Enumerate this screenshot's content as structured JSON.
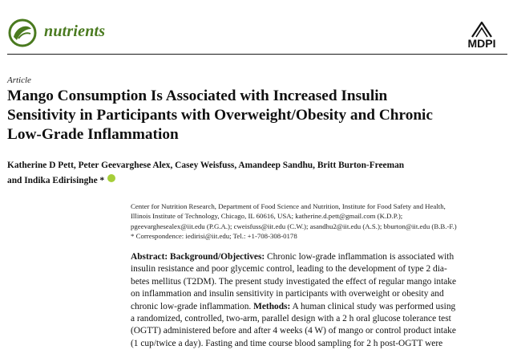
{
  "header": {
    "journal_name": "nutrients",
    "publisher": "MDPI",
    "brand_color": "#4a7a1f",
    "icons": [
      "nutrients-logo-icon",
      "mdpi-logo-icon"
    ]
  },
  "article": {
    "type": "Article",
    "title_lines": [
      "Mango Consumption Is Associated with Increased Insulin",
      "Sensitivity in Participants with Overweight/Obesity and Chronic",
      "Low-Grade Inflammation"
    ],
    "authors_lines": [
      "Katherine D Pett, Peter Geevarghese Alex, Casey Weisfuss, Amandeep Sandhu, Britt Burton-Freeman",
      "and Indika Edirisinghe *"
    ],
    "affiliation_lines": [
      "Center for Nutrition Research, Department of Food Science and Nutrition, Institute for Food Safety and Health,",
      "Illinois Institute of Technology, Chicago, IL 60616, USA; katherine.d.pett@gmail.com (K.D.P.);",
      "pgeevarghesealex@iit.edu (P.G.A.); cweisfuss@iit.edu (C.W.); asandhu2@iit.edu (A.S.); bburton@iit.edu (B.B.-F.)",
      "*   Correspondence: iedirisi@iit.edu; Tel.: +1-708-308-0178"
    ],
    "abstract": {
      "label": "Abstract:",
      "section1_label": "Background/Objectives:",
      "line1_rest": " Chronic low-grade inflammation is associated with",
      "lines_a": [
        "insulin resistance and poor glycemic control, leading to the development of type 2 dia-",
        "betes mellitus (T2DM). The present study investigated the effect of regular mango intake",
        "on inflammation and insulin sensitivity in participants with overweight or obesity and"
      ],
      "line5_pre": "chronic low-grade inflammation. ",
      "section2_label": "Methods:",
      "line5_rest": " A human clinical study was performed using",
      "lines_b": [
        "a randomized, controlled, two-arm, parallel design with a 2 h oral glucose tolerance test",
        "(OGTT) administered before and after 4 weeks (4 W) of mango or control product intake",
        "(1 cup/twice a day). Fasting and time course blood sampling for 2 h post-OGTT were"
      ]
    }
  }
}
